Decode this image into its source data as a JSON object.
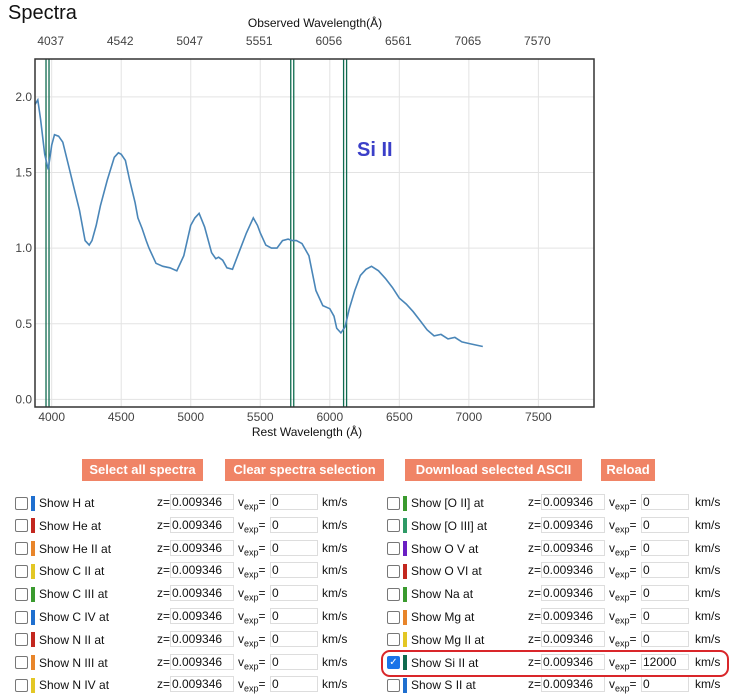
{
  "page": {
    "title": "Spectra"
  },
  "plot": {
    "top_axis_label": "Observed Wavelength(Å)",
    "bottom_axis_label": "Rest Wavelength (Å)",
    "line_label": "Si II",
    "colors": {
      "spectrum": "#4a86b8",
      "lines": "#0f6b4f",
      "label": "#3b3fc8"
    }
  },
  "chart_data": {
    "type": "line",
    "xlabel": "Rest Wavelength (Å)",
    "x2label": "Observed Wavelength(Å)",
    "xlim": [
      3880,
      7900
    ],
    "ylim": [
      -0.05,
      2.25
    ],
    "x_ticks": [
      "4000",
      "4500",
      "5000",
      "5500",
      "6000",
      "6500",
      "7000",
      "7500"
    ],
    "x2_ticks": [
      "4037",
      "4542",
      "5047",
      "5551",
      "6056",
      "6561",
      "7065",
      "7570"
    ],
    "y_ticks": [
      "0.0",
      "0.5",
      "1.0",
      "1.5",
      "2.0"
    ],
    "vertical_lines": [
      3970,
      5730,
      6110
    ],
    "annotation": "Si II",
    "series": [
      {
        "x": [
          3880,
          3900,
          3920,
          3950,
          3975,
          4000,
          4020,
          4050,
          4080,
          4120,
          4160,
          4200,
          4240,
          4270,
          4290,
          4320,
          4350,
          4400,
          4450,
          4480,
          4500,
          4530,
          4560,
          4600,
          4620,
          4650,
          4680,
          4700,
          4750,
          4800,
          4850,
          4900,
          4950,
          5000,
          5030,
          5060,
          5100,
          5150,
          5180,
          5200,
          5230,
          5260,
          5300,
          5350,
          5400,
          5450,
          5480,
          5500,
          5540,
          5580,
          5620,
          5660,
          5700,
          5730,
          5760,
          5800,
          5850,
          5900,
          5950,
          6000,
          6030,
          6050,
          6080,
          6110,
          6140,
          6180,
          6220,
          6260,
          6300,
          6350,
          6400,
          6450,
          6500,
          6550,
          6600,
          6650,
          6700,
          6750,
          6800,
          6850,
          6900,
          6950,
          7000,
          7050,
          7100
        ],
        "values": [
          1.95,
          1.98,
          1.85,
          1.62,
          1.52,
          1.68,
          1.75,
          1.74,
          1.7,
          1.55,
          1.4,
          1.25,
          1.05,
          1.02,
          1.05,
          1.15,
          1.28,
          1.45,
          1.6,
          1.63,
          1.62,
          1.58,
          1.45,
          1.3,
          1.2,
          1.13,
          1.05,
          1.0,
          0.9,
          0.88,
          0.87,
          0.85,
          0.95,
          1.15,
          1.2,
          1.23,
          1.14,
          0.97,
          0.93,
          0.94,
          0.92,
          0.87,
          0.86,
          0.98,
          1.1,
          1.2,
          1.15,
          1.1,
          1.02,
          1.0,
          1.0,
          1.05,
          1.06,
          1.05,
          1.05,
          1.03,
          0.95,
          0.72,
          0.62,
          0.6,
          0.55,
          0.47,
          0.44,
          0.48,
          0.6,
          0.72,
          0.82,
          0.86,
          0.88,
          0.85,
          0.8,
          0.74,
          0.67,
          0.63,
          0.58,
          0.52,
          0.46,
          0.42,
          0.43,
          0.4,
          0.41,
          0.38,
          0.37,
          0.36,
          0.35
        ]
      }
    ]
  },
  "buttons": {
    "select_all": "Select all spectra",
    "clear_selection": "Clear spectra selection",
    "download": "Download selected ASCII",
    "reload": "Reload"
  },
  "common": {
    "z_label": "z=",
    "v_label": "v",
    "v_sub": "exp",
    "v_eq": "=",
    "unit": "km/s"
  },
  "left_rows": [
    {
      "label": "Show H at",
      "color": "#1f6fcf",
      "z": "0.009346",
      "v": "0",
      "checked": false
    },
    {
      "label": "Show He at",
      "color": "#c3271f",
      "z": "0.009346",
      "v": "0",
      "checked": false
    },
    {
      "label": "Show He II at",
      "color": "#e8852a",
      "z": "0.009346",
      "v": "0",
      "checked": false
    },
    {
      "label": "Show C II at",
      "color": "#e3c725",
      "z": "0.009346",
      "v": "0",
      "checked": false
    },
    {
      "label": "Show C III at",
      "color": "#3a9a2e",
      "z": "0.009346",
      "v": "0",
      "checked": false
    },
    {
      "label": "Show C IV at",
      "color": "#1f6fcf",
      "z": "0.009346",
      "v": "0",
      "checked": false
    },
    {
      "label": "Show N II at",
      "color": "#c3271f",
      "z": "0.009346",
      "v": "0",
      "checked": false
    },
    {
      "label": "Show N III at",
      "color": "#e8852a",
      "z": "0.009346",
      "v": "0",
      "checked": false
    },
    {
      "label": "Show N IV at",
      "color": "#e3c725",
      "z": "0.009346",
      "v": "0",
      "checked": false
    }
  ],
  "right_rows": [
    {
      "label": "Show [O II] at",
      "color": "#3a9a2e",
      "z": "0.009346",
      "v": "0",
      "checked": false
    },
    {
      "label": "Show [O III] at",
      "color": "#2e9a66",
      "z": "0.009346",
      "v": "0",
      "checked": false
    },
    {
      "label": "Show O V at",
      "color": "#6a1fc3",
      "z": "0.009346",
      "v": "0",
      "checked": false
    },
    {
      "label": "Show O VI at",
      "color": "#c3271f",
      "z": "0.009346",
      "v": "0",
      "checked": false
    },
    {
      "label": "Show Na at",
      "color": "#3a9a2e",
      "z": "0.009346",
      "v": "0",
      "checked": false
    },
    {
      "label": "Show Mg at",
      "color": "#e8852a",
      "z": "0.009346",
      "v": "0",
      "checked": false
    },
    {
      "label": "Show Mg II at",
      "color": "#e3c725",
      "z": "0.009346",
      "v": "0",
      "checked": false
    },
    {
      "label": "Show Si II at",
      "color": "#0f6b4f",
      "z": "0.009346",
      "v": "12000",
      "checked": true
    },
    {
      "label": "Show S II at",
      "color": "#1f6fcf",
      "z": "0.009346",
      "v": "0",
      "checked": false
    }
  ]
}
